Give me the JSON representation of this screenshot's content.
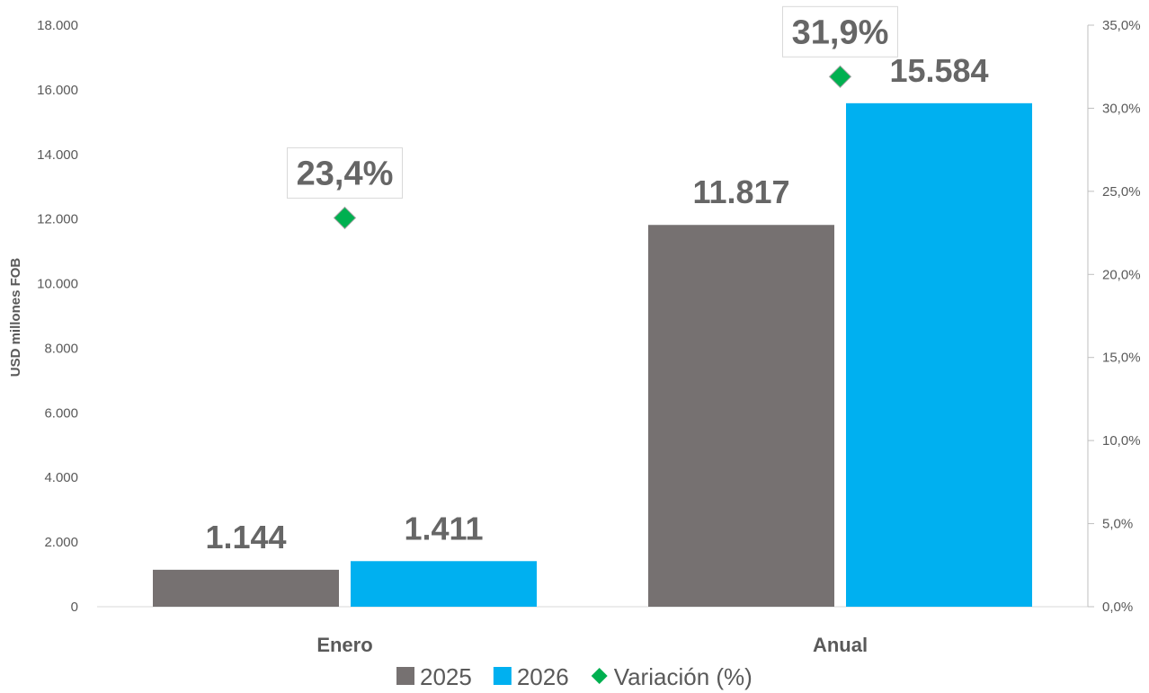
{
  "chart_data": {
    "type": "bar",
    "categories": [
      "Enero",
      "Anual"
    ],
    "series": [
      {
        "name": "2025",
        "values": [
          1144,
          11817
        ],
        "labels": [
          "1.144",
          "11.817"
        ],
        "color": "#767171"
      },
      {
        "name": "2026",
        "values": [
          1411,
          15584
        ],
        "labels": [
          "1.411",
          "15.584"
        ],
        "color": "#00B0F0"
      }
    ],
    "secondary_series": {
      "name": "Variación (%)",
      "type": "scatter",
      "marker": "diamond",
      "color": "#00B050",
      "values": [
        23.4,
        31.9
      ],
      "labels": [
        "23,4%",
        "31,9%"
      ]
    },
    "ylabel": "USD millones FOB",
    "ylim": [
      0,
      18000
    ],
    "y_ticks": [
      "0",
      "2.000",
      "4.000",
      "6.000",
      "8.000",
      "10.000",
      "12.000",
      "14.000",
      "16.000",
      "18.000"
    ],
    "y2lim": [
      0,
      35
    ],
    "y2_ticks": [
      "0,0%",
      "5,0%",
      "10,0%",
      "15,0%",
      "20,0%",
      "25,0%",
      "30,0%",
      "35,0%"
    ],
    "legend": [
      "2025",
      "2026",
      "Variación (%)"
    ],
    "legend_position": "bottom",
    "grid": false
  }
}
